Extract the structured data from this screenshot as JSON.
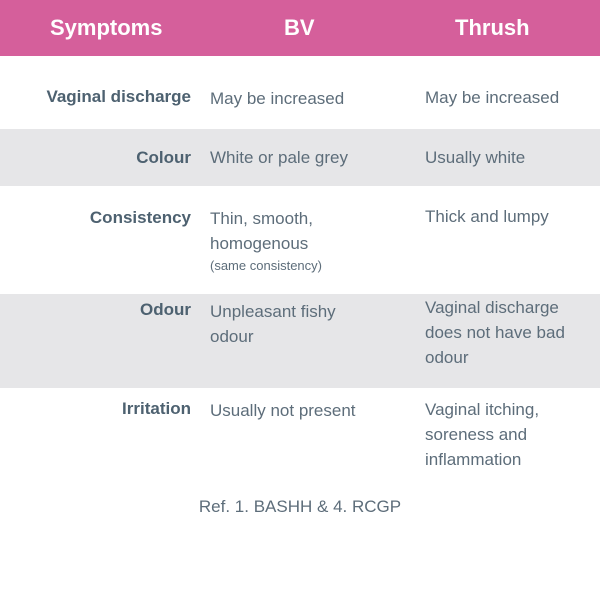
{
  "header": {
    "symptoms": "Symptoms",
    "bv": "BV",
    "thrush": "Thrush"
  },
  "rows": [
    {
      "symptom": "Vaginal discharge",
      "bv": "May be increased",
      "thrush": "May be increased"
    },
    {
      "symptom": "Colour",
      "bv": "White or pale grey",
      "thrush": "Usually white"
    },
    {
      "symptom": "Consistency",
      "bv": "Thin, smooth, homogenous",
      "bv_note": "(same consistency)",
      "thrush": "Thick and lumpy"
    },
    {
      "symptom": "Odour",
      "bv": "Unpleasant fishy odour",
      "thrush": "Vaginal discharge does not have bad odour"
    },
    {
      "symptom": "Irritation",
      "bv": "Usually not present",
      "thrush": "Vaginal itching, soreness and inflammation"
    }
  ],
  "footer": "Ref. 1. BASHH & 4. RCGP",
  "colors": {
    "header_bg": "#d55f9b",
    "shade_bg": "#e6e6e8",
    "text": "#5d6d7a"
  }
}
